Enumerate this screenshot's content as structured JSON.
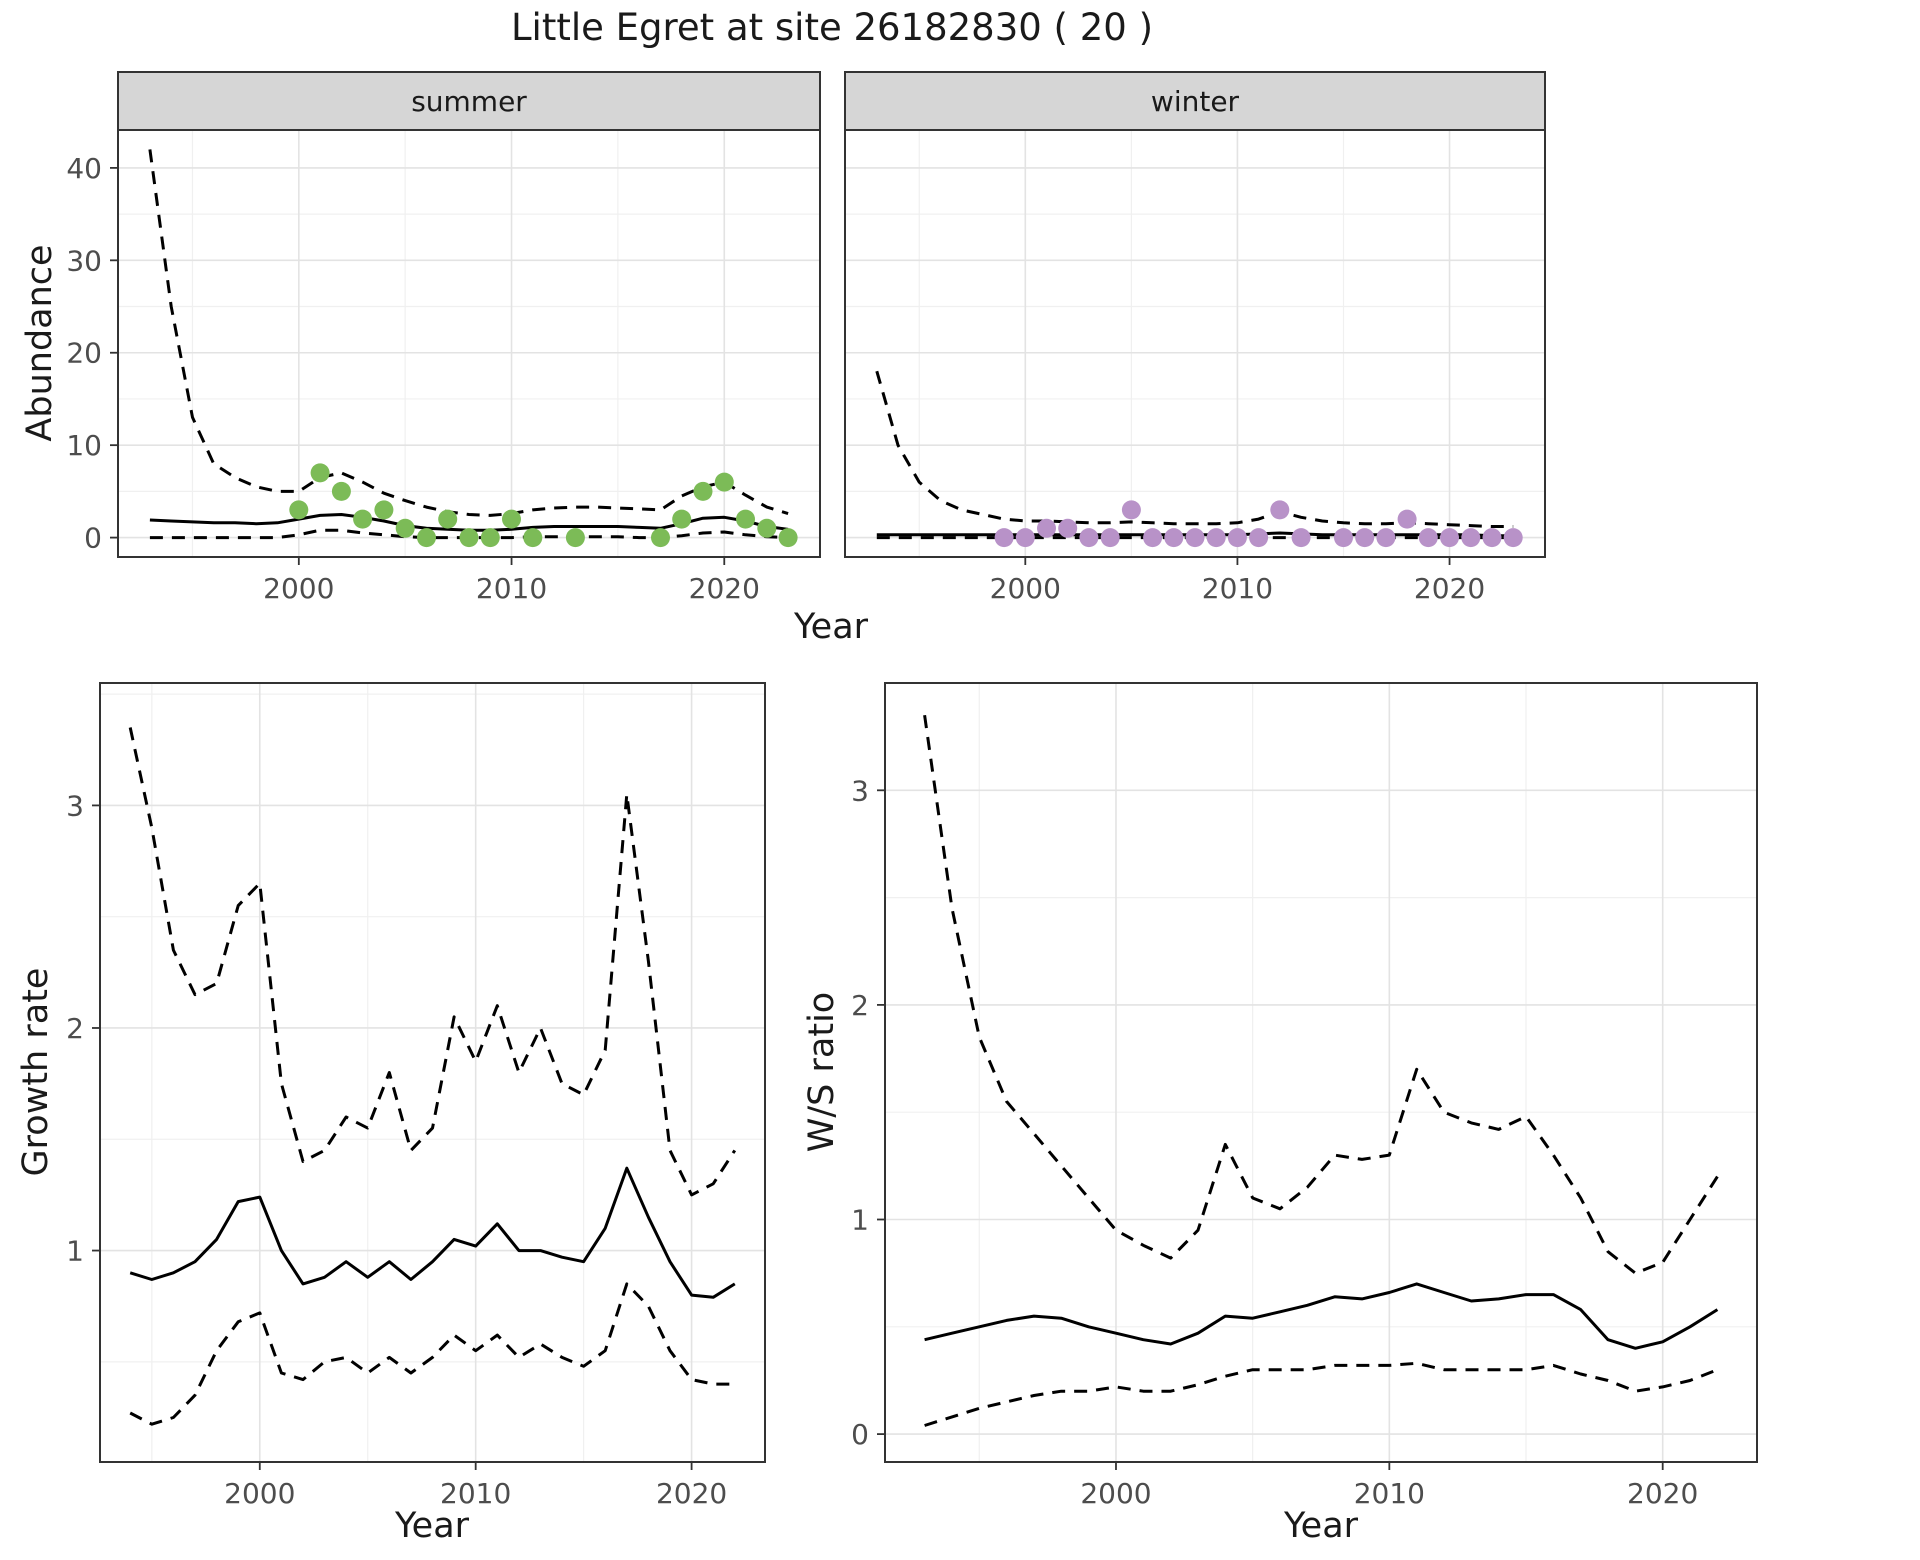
{
  "title": "Little Egret at site 26182830 ( 20 )",
  "colors": {
    "line": "#000000",
    "summer_points": "#7cbb57",
    "winter_points": "#b892c8",
    "strip_bg": "#d6d6d6",
    "panel_border": "#333333",
    "grid_major": "#e3e3e3",
    "grid_minor": "#f0f0f0",
    "tick_label": "#4d4d4d"
  },
  "chart_data": [
    {
      "id": "abundance-summer",
      "type": "line",
      "facet": "summer",
      "xlabel": "Year",
      "ylabel": "Abundance",
      "xlim": [
        1991.5,
        2024.5
      ],
      "ylim": [
        -2.1,
        44.1
      ],
      "xticks": [
        2000,
        2010,
        2020
      ],
      "yticks": [
        0,
        10,
        20,
        30,
        40
      ],
      "x": [
        1993,
        1994,
        1995,
        1996,
        1997,
        1998,
        1999,
        2000,
        2001,
        2002,
        2003,
        2004,
        2005,
        2006,
        2007,
        2008,
        2009,
        2010,
        2011,
        2012,
        2013,
        2014,
        2015,
        2016,
        2017,
        2018,
        2019,
        2020,
        2021,
        2022,
        2023
      ],
      "series": [
        {
          "name": "model-fit",
          "style": "solid",
          "values": [
            1.9,
            1.8,
            1.7,
            1.6,
            1.6,
            1.5,
            1.6,
            2.0,
            2.4,
            2.5,
            2.2,
            1.8,
            1.3,
            1.0,
            0.9,
            0.8,
            0.8,
            0.9,
            1.1,
            1.2,
            1.2,
            1.2,
            1.2,
            1.1,
            1.0,
            1.5,
            2.1,
            2.2,
            1.8,
            1.2,
            0.9
          ]
        },
        {
          "name": "upper-ci",
          "style": "dashed",
          "values": [
            42,
            25,
            13,
            8,
            6.5,
            5.5,
            5,
            5,
            6.5,
            7,
            6,
            4.8,
            4,
            3.3,
            2.8,
            2.5,
            2.4,
            2.6,
            3,
            3.2,
            3.3,
            3.3,
            3.2,
            3.1,
            3,
            4.5,
            5.5,
            6,
            4.6,
            3.3,
            2.6
          ]
        },
        {
          "name": "lower-ci",
          "style": "dashed",
          "values": [
            0,
            0,
            0,
            0,
            0,
            0,
            0,
            0.3,
            0.8,
            0.8,
            0.5,
            0.3,
            0.1,
            0,
            0,
            0,
            0,
            0,
            0.1,
            0.1,
            0.1,
            0.1,
            0.1,
            0,
            0,
            0.2,
            0.5,
            0.6,
            0.3,
            0.1,
            0
          ]
        }
      ],
      "points": {
        "name": "observed-counts-summer",
        "color": "#7cbb57",
        "x": [
          2000,
          2001,
          2002,
          2003,
          2004,
          2005,
          2006,
          2007,
          2008,
          2009,
          2010,
          2011,
          2013,
          2017,
          2018,
          2019,
          2020,
          2021,
          2022,
          2023
        ],
        "y": [
          3,
          7,
          5,
          2,
          3,
          1,
          0,
          2,
          0,
          0,
          2,
          0,
          0,
          0,
          2,
          5,
          6,
          2,
          1,
          0
        ]
      }
    },
    {
      "id": "abundance-winter",
      "type": "line",
      "facet": "winter",
      "xlabel": "Year",
      "ylabel": "Abundance",
      "xlim": [
        1991.5,
        2024.5
      ],
      "ylim": [
        -2.1,
        44.1
      ],
      "xticks": [
        2000,
        2010,
        2020
      ],
      "yticks": [
        0,
        10,
        20,
        30,
        40
      ],
      "x": [
        1993,
        1994,
        1995,
        1996,
        1997,
        1998,
        1999,
        2000,
        2001,
        2002,
        2003,
        2004,
        2005,
        2006,
        2007,
        2008,
        2009,
        2010,
        2011,
        2012,
        2013,
        2014,
        2015,
        2016,
        2017,
        2018,
        2019,
        2020,
        2021,
        2022,
        2023
      ],
      "series": [
        {
          "name": "model-fit",
          "style": "solid",
          "values": [
            0.3,
            0.3,
            0.3,
            0.3,
            0.3,
            0.3,
            0.3,
            0.3,
            0.3,
            0.3,
            0.3,
            0.3,
            0.3,
            0.3,
            0.3,
            0.3,
            0.3,
            0.3,
            0.4,
            0.5,
            0.4,
            0.3,
            0.3,
            0.3,
            0.3,
            0.3,
            0.3,
            0.3,
            0.3,
            0.2,
            0.2
          ]
        },
        {
          "name": "upper-ci",
          "style": "dashed",
          "values": [
            18,
            10,
            6,
            4,
            3,
            2.5,
            2,
            1.8,
            1.8,
            1.7,
            1.6,
            1.6,
            1.7,
            1.6,
            1.5,
            1.5,
            1.5,
            1.6,
            2.0,
            2.8,
            2.2,
            1.8,
            1.6,
            1.5,
            1.5,
            1.6,
            1.5,
            1.4,
            1.3,
            1.2,
            1.2
          ]
        },
        {
          "name": "lower-ci",
          "style": "dashed",
          "values": [
            0,
            0,
            0,
            0,
            0,
            0,
            0,
            0,
            0,
            0,
            0,
            0,
            0,
            0,
            0,
            0,
            0,
            0,
            0,
            0,
            0,
            0,
            0,
            0,
            0,
            0,
            0,
            0,
            0,
            0,
            0
          ]
        }
      ],
      "points": {
        "name": "observed-counts-winter",
        "color": "#b892c8",
        "x": [
          1999,
          2000,
          2001,
          2002,
          2003,
          2004,
          2005,
          2006,
          2007,
          2008,
          2009,
          2010,
          2011,
          2012,
          2013,
          2015,
          2016,
          2017,
          2018,
          2019,
          2020,
          2021,
          2022,
          2023
        ],
        "y": [
          0,
          0,
          1,
          1,
          0,
          0,
          3,
          0,
          0,
          0,
          0,
          0,
          0,
          3,
          0,
          0,
          0,
          0,
          2,
          0,
          0,
          0,
          0,
          0
        ]
      }
    },
    {
      "id": "growth-rate",
      "type": "line",
      "facet": "",
      "xlabel": "Year",
      "ylabel": "Growth rate",
      "xlim": [
        1992.6,
        2023.4
      ],
      "ylim": [
        0.05,
        3.55
      ],
      "xticks": [
        2000,
        2010,
        2020
      ],
      "yticks": [
        1,
        2,
        3
      ],
      "x": [
        1994,
        1995,
        1996,
        1997,
        1998,
        1999,
        2000,
        2001,
        2002,
        2003,
        2004,
        2005,
        2006,
        2007,
        2008,
        2009,
        2010,
        2011,
        2012,
        2013,
        2014,
        2015,
        2016,
        2017,
        2018,
        2019,
        2020,
        2021,
        2022
      ],
      "series": [
        {
          "name": "model-fit",
          "style": "solid",
          "values": [
            0.9,
            0.87,
            0.9,
            0.95,
            1.05,
            1.22,
            1.24,
            1.0,
            0.85,
            0.88,
            0.95,
            0.88,
            0.95,
            0.87,
            0.95,
            1.05,
            1.02,
            1.12,
            1.0,
            1.0,
            0.97,
            0.95,
            1.1,
            1.37,
            1.15,
            0.95,
            0.8,
            0.79,
            0.85
          ]
        },
        {
          "name": "upper-ci",
          "style": "dashed",
          "values": [
            3.35,
            2.9,
            2.35,
            2.15,
            2.2,
            2.55,
            2.65,
            1.75,
            1.4,
            1.45,
            1.6,
            1.55,
            1.8,
            1.45,
            1.55,
            2.05,
            1.85,
            2.1,
            1.8,
            2.0,
            1.75,
            1.7,
            1.9,
            3.05,
            2.3,
            1.45,
            1.25,
            1.3,
            1.45
          ]
        },
        {
          "name": "lower-ci",
          "style": "dashed",
          "values": [
            0.27,
            0.22,
            0.25,
            0.35,
            0.55,
            0.68,
            0.72,
            0.45,
            0.42,
            0.5,
            0.52,
            0.45,
            0.52,
            0.45,
            0.52,
            0.62,
            0.55,
            0.62,
            0.52,
            0.58,
            0.52,
            0.48,
            0.55,
            0.85,
            0.75,
            0.55,
            0.42,
            0.4,
            0.4
          ]
        }
      ]
    },
    {
      "id": "ws-ratio",
      "type": "line",
      "facet": "",
      "xlabel": "Year",
      "ylabel": "W/S ratio",
      "xlim": [
        1991.55,
        2023.45
      ],
      "ylim": [
        -0.13,
        3.5
      ],
      "xticks": [
        2000,
        2010,
        2020
      ],
      "yticks": [
        0,
        1,
        2,
        3
      ],
      "x": [
        1993,
        1994,
        1995,
        1996,
        1997,
        1998,
        1999,
        2000,
        2001,
        2002,
        2003,
        2004,
        2005,
        2006,
        2007,
        2008,
        2009,
        2010,
        2011,
        2012,
        2013,
        2014,
        2015,
        2016,
        2017,
        2018,
        2019,
        2020,
        2021,
        2022
      ],
      "series": [
        {
          "name": "model-fit",
          "style": "solid",
          "values": [
            0.44,
            0.47,
            0.5,
            0.53,
            0.55,
            0.54,
            0.5,
            0.47,
            0.44,
            0.42,
            0.47,
            0.55,
            0.54,
            0.57,
            0.6,
            0.64,
            0.63,
            0.66,
            0.7,
            0.66,
            0.62,
            0.63,
            0.65,
            0.65,
            0.58,
            0.44,
            0.4,
            0.43,
            0.5,
            0.58
          ]
        },
        {
          "name": "upper-ci",
          "style": "dashed",
          "values": [
            3.35,
            2.45,
            1.85,
            1.55,
            1.4,
            1.25,
            1.1,
            0.95,
            0.88,
            0.82,
            0.95,
            1.35,
            1.1,
            1.05,
            1.15,
            1.3,
            1.28,
            1.3,
            1.7,
            1.5,
            1.45,
            1.42,
            1.48,
            1.3,
            1.1,
            0.85,
            0.75,
            0.8,
            1.0,
            1.2
          ]
        },
        {
          "name": "lower-ci",
          "style": "dashed",
          "values": [
            0.04,
            0.08,
            0.12,
            0.15,
            0.18,
            0.2,
            0.2,
            0.22,
            0.2,
            0.2,
            0.23,
            0.27,
            0.3,
            0.3,
            0.3,
            0.32,
            0.32,
            0.32,
            0.33,
            0.3,
            0.3,
            0.3,
            0.3,
            0.32,
            0.28,
            0.25,
            0.2,
            0.22,
            0.25,
            0.3
          ]
        }
      ]
    }
  ]
}
